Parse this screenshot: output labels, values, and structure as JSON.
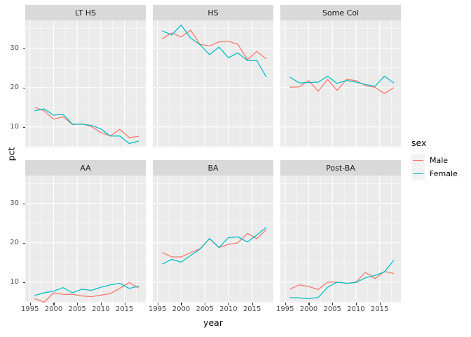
{
  "chart_data": {
    "type": "line",
    "title": "",
    "xlabel": "year",
    "ylabel": "pct",
    "grid": "on",
    "panel_style": {
      "panel_bg": "#EBEBEB",
      "strip_bg": "#D9D9D9",
      "gridline_color": "#FFFFFF",
      "tick_color": "#333333",
      "tick_label_color": "#4D4D4D"
    },
    "x": [
      1996,
      1998,
      2000,
      2002,
      2004,
      2006,
      2008,
      2010,
      2012,
      2014,
      2016,
      2018
    ],
    "x_ticks": [
      1995,
      2000,
      2005,
      2010,
      2015
    ],
    "y_ticks": [
      10,
      20,
      30
    ],
    "xlim": [
      1994,
      2019.5
    ],
    "ylim": [
      4.8,
      37.1
    ],
    "legend": {
      "title": "sex",
      "position": "right",
      "entries": [
        {
          "label": "Male",
          "color": "#F8766D"
        },
        {
          "label": "Female",
          "color": "#00BFC4"
        }
      ]
    },
    "facets": [
      {
        "label": "LT HS",
        "series": [
          {
            "name": "Male",
            "color": "#F8766D",
            "values": [
              15.0,
              14.1,
              12.0,
              12.6,
              10.6,
              10.8,
              10.1,
              8.6,
              7.7,
              9.4,
              7.3,
              7.6
            ]
          },
          {
            "name": "Female",
            "color": "#00BFC4",
            "values": [
              14.1,
              14.6,
              13.0,
              13.2,
              10.7,
              10.7,
              10.4,
              9.5,
              7.7,
              7.7,
              5.8,
              6.4
            ]
          }
        ]
      },
      {
        "label": "HS",
        "series": [
          {
            "name": "Male",
            "color": "#F8766D",
            "values": [
              32.4,
              33.9,
              32.9,
              34.6,
              31.0,
              30.6,
              31.6,
              31.8,
              31.0,
              27.1,
              29.2,
              27.3
            ]
          },
          {
            "name": "Female",
            "color": "#00BFC4",
            "values": [
              34.4,
              33.4,
              35.9,
              32.6,
              30.9,
              28.4,
              30.3,
              27.6,
              28.8,
              26.9,
              26.9,
              22.7
            ]
          }
        ]
      },
      {
        "label": "Some Col",
        "series": [
          {
            "name": "Male",
            "color": "#F8766D",
            "values": [
              20.1,
              20.2,
              21.8,
              19.1,
              22.1,
              19.3,
              22.1,
              21.8,
              20.5,
              20.1,
              18.5,
              20.0
            ]
          },
          {
            "name": "Female",
            "color": "#00BFC4",
            "values": [
              22.7,
              21.2,
              21.3,
              21.4,
              22.9,
              21.1,
              21.8,
              21.4,
              20.8,
              20.3,
              22.9,
              21.2
            ]
          }
        ]
      },
      {
        "label": "AA",
        "series": [
          {
            "name": "Male",
            "color": "#F8766D",
            "values": [
              5.8,
              4.9,
              7.3,
              6.9,
              6.9,
              6.5,
              6.3,
              6.7,
              7.1,
              8.4,
              9.9,
              8.5
            ]
          },
          {
            "name": "Female",
            "color": "#00BFC4",
            "values": [
              6.6,
              7.3,
              7.7,
              8.6,
              7.3,
              8.2,
              7.9,
              8.7,
              9.3,
              9.7,
              8.4,
              9.0
            ]
          }
        ]
      },
      {
        "label": "BA",
        "series": [
          {
            "name": "Male",
            "color": "#F8766D",
            "values": [
              17.5,
              16.4,
              16.4,
              17.5,
              18.5,
              21.0,
              18.8,
              19.6,
              20.0,
              22.4,
              21.1,
              23.3
            ]
          },
          {
            "name": "Female",
            "color": "#00BFC4",
            "values": [
              14.6,
              15.8,
              15.1,
              16.8,
              18.4,
              21.1,
              18.8,
              21.3,
              21.5,
              20.2,
              22.0,
              23.9
            ]
          }
        ]
      },
      {
        "label": "Post-BA",
        "series": [
          {
            "name": "Male",
            "color": "#F8766D",
            "values": [
              8.2,
              9.3,
              8.9,
              8.1,
              10.0,
              10.0,
              9.7,
              10.0,
              12.5,
              10.9,
              12.7,
              12.2
            ]
          },
          {
            "name": "Female",
            "color": "#00BFC4",
            "values": [
              6.1,
              6.0,
              5.8,
              6.1,
              8.7,
              10.0,
              9.7,
              9.9,
              11.1,
              11.7,
              12.6,
              15.6
            ]
          }
        ]
      }
    ]
  }
}
